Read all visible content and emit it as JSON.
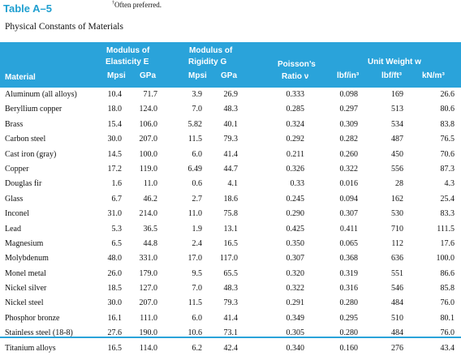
{
  "table_label": "Table A–5",
  "footnote_marker": "†",
  "footnote_text": "Often preferred.",
  "caption": "Physical Constants of Materials",
  "headers": {
    "material": "Material",
    "elasticity_line1": "Modulus of",
    "elasticity_line2": "Elasticity E",
    "rigidity_line1": "Modulus of",
    "rigidity_line2": "Rigidity G",
    "poisson_line1": "Poisson’s",
    "poisson_line2": "Ratio ν",
    "weight_line1": "Unit Weight w",
    "mpsi": "Mpsi",
    "gpa": "GPa",
    "mpsi2": "Mpsi",
    "gpa2": "GPa",
    "lbf_in3": "lbf/in³",
    "lbf_ft3": "lbf/ft³",
    "kn_m3": "kN/m³"
  },
  "rows": [
    [
      "Aluminum (all alloys)",
      "10.4",
      "71.7",
      "3.9",
      "26.9",
      "0.333",
      "0.098",
      "169",
      "26.6"
    ],
    [
      "Beryllium copper",
      "18.0",
      "124.0",
      "7.0",
      "48.3",
      "0.285",
      "0.297",
      "513",
      "80.6"
    ],
    [
      "Brass",
      "15.4",
      "106.0",
      "5.82",
      "40.1",
      "0.324",
      "0.309",
      "534",
      "83.8"
    ],
    [
      "Carbon steel",
      "30.0",
      "207.0",
      "11.5",
      "79.3",
      "0.292",
      "0.282",
      "487",
      "76.5"
    ],
    [
      "Cast iron (gray)",
      "14.5",
      "100.0",
      "6.0",
      "41.4",
      "0.211",
      "0.260",
      "450",
      "70.6"
    ],
    [
      "Copper",
      "17.2",
      "119.0",
      "6.49",
      "44.7",
      "0.326",
      "0.322",
      "556",
      "87.3"
    ],
    [
      "Douglas fir",
      "1.6",
      "11.0",
      "0.6",
      "4.1",
      "0.33",
      "0.016",
      "28",
      "4.3"
    ],
    [
      "Glass",
      "6.7",
      "46.2",
      "2.7",
      "18.6",
      "0.245",
      "0.094",
      "162",
      "25.4"
    ],
    [
      "Inconel",
      "31.0",
      "214.0",
      "11.0",
      "75.8",
      "0.290",
      "0.307",
      "530",
      "83.3"
    ],
    [
      "Lead",
      "5.3",
      "36.5",
      "1.9",
      "13.1",
      "0.425",
      "0.411",
      "710",
      "111.5"
    ],
    [
      "Magnesium",
      "6.5",
      "44.8",
      "2.4",
      "16.5",
      "0.350",
      "0.065",
      "112",
      "17.6"
    ],
    [
      "Molybdenum",
      "48.0",
      "331.0",
      "17.0",
      "117.0",
      "0.307",
      "0.368",
      "636",
      "100.0"
    ],
    [
      "Monel metal",
      "26.0",
      "179.0",
      "9.5",
      "65.5",
      "0.320",
      "0.319",
      "551",
      "86.6"
    ],
    [
      "Nickel silver",
      "18.5",
      "127.0",
      "7.0",
      "48.3",
      "0.322",
      "0.316",
      "546",
      "85.8"
    ],
    [
      "Nickel steel",
      "30.0",
      "207.0",
      "11.5",
      "79.3",
      "0.291",
      "0.280",
      "484",
      "76.0"
    ],
    [
      "Phosphor bronze",
      "16.1",
      "111.0",
      "6.0",
      "41.4",
      "0.349",
      "0.295",
      "510",
      "80.1"
    ],
    [
      "Stainless steel (18-8)",
      "27.6",
      "190.0",
      "10.6",
      "73.1",
      "0.305",
      "0.280",
      "484",
      "76.0"
    ],
    [
      "Titanium alloys",
      "16.5",
      "114.0",
      "6.2",
      "42.4",
      "0.340",
      "0.160",
      "276",
      "43.4"
    ]
  ]
}
